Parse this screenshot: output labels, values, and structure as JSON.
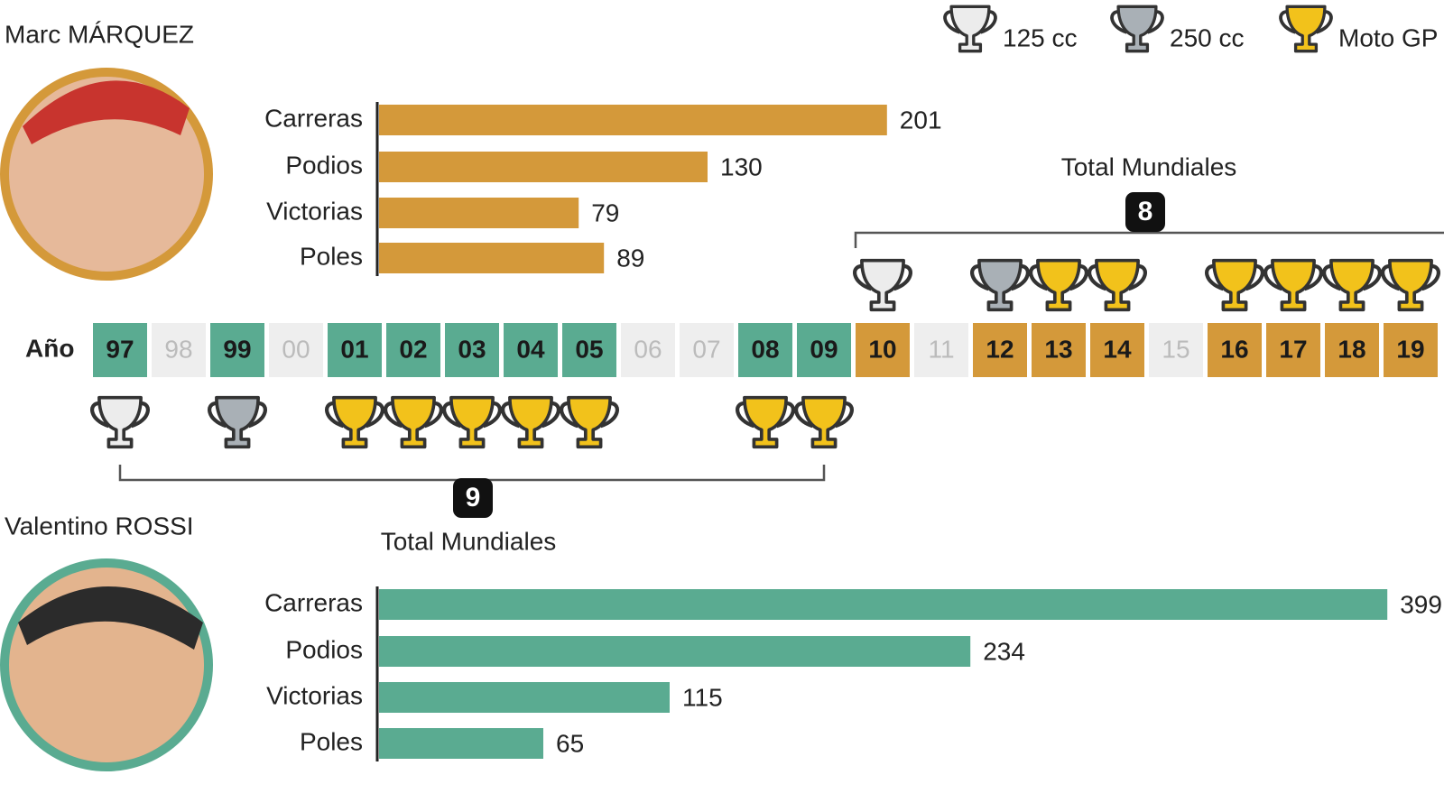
{
  "chart_data": [
    {
      "type": "bar",
      "title": "Marc MÁRQUEZ",
      "categories": [
        "Carreras",
        "Podios",
        "Victorias",
        "Poles"
      ],
      "values": [
        201,
        130,
        79,
        89
      ],
      "color": "#d4993a",
      "xlim": [
        0,
        420
      ],
      "total_label": "Total Mundiales",
      "total": 8
    },
    {
      "type": "bar",
      "title": "Valentino ROSSI",
      "categories": [
        "Carreras",
        "Podios",
        "Victorias",
        "Poles"
      ],
      "values": [
        399,
        234,
        115,
        65
      ],
      "color": "#5aab91",
      "xlim": [
        0,
        420
      ],
      "total_label": "Total Mundiales",
      "total": 9
    }
  ],
  "legend": [
    {
      "label": "125 cc",
      "color": "#ececec"
    },
    {
      "label": "250 cc",
      "color": "#a9b0b6"
    },
    {
      "label": "Moto GP",
      "color": "#f2c21b"
    }
  ],
  "timeline": {
    "label": "Año",
    "cells": [
      {
        "year": "97",
        "color": "#5aab91",
        "trophy": "#ececec",
        "side": "below"
      },
      {
        "year": "98",
        "color": "#eeeeee",
        "trophy": null,
        "side": null
      },
      {
        "year": "99",
        "color": "#5aab91",
        "trophy": "#a9b0b6",
        "side": "below"
      },
      {
        "year": "00",
        "color": "#eeeeee",
        "trophy": null,
        "side": null
      },
      {
        "year": "01",
        "color": "#5aab91",
        "trophy": "#f2c21b",
        "side": "below"
      },
      {
        "year": "02",
        "color": "#5aab91",
        "trophy": "#f2c21b",
        "side": "below"
      },
      {
        "year": "03",
        "color": "#5aab91",
        "trophy": "#f2c21b",
        "side": "below"
      },
      {
        "year": "04",
        "color": "#5aab91",
        "trophy": "#f2c21b",
        "side": "below"
      },
      {
        "year": "05",
        "color": "#5aab91",
        "trophy": "#f2c21b",
        "side": "below"
      },
      {
        "year": "06",
        "color": "#eeeeee",
        "trophy": null,
        "side": null
      },
      {
        "year": "07",
        "color": "#eeeeee",
        "trophy": null,
        "side": null
      },
      {
        "year": "08",
        "color": "#5aab91",
        "trophy": "#f2c21b",
        "side": "below"
      },
      {
        "year": "09",
        "color": "#5aab91",
        "trophy": "#f2c21b",
        "side": "below"
      },
      {
        "year": "10",
        "color": "#d4993a",
        "trophy": "#ececec",
        "side": "above"
      },
      {
        "year": "11",
        "color": "#eeeeee",
        "trophy": null,
        "side": null
      },
      {
        "year": "12",
        "color": "#d4993a",
        "trophy": "#a9b0b6",
        "side": "above"
      },
      {
        "year": "13",
        "color": "#d4993a",
        "trophy": "#f2c21b",
        "side": "above"
      },
      {
        "year": "14",
        "color": "#d4993a",
        "trophy": "#f2c21b",
        "side": "above"
      },
      {
        "year": "15",
        "color": "#eeeeee",
        "trophy": null,
        "side": null
      },
      {
        "year": "16",
        "color": "#d4993a",
        "trophy": "#f2c21b",
        "side": "above"
      },
      {
        "year": "17",
        "color": "#d4993a",
        "trophy": "#f2c21b",
        "side": "above"
      },
      {
        "year": "18",
        "color": "#d4993a",
        "trophy": "#f2c21b",
        "side": "above"
      },
      {
        "year": "19",
        "color": "#d4993a",
        "trophy": "#f2c21b",
        "side": "above"
      }
    ]
  }
}
